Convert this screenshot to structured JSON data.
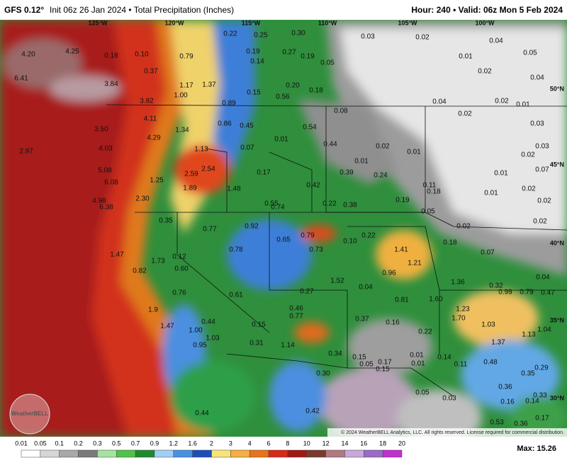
{
  "header": {
    "model": "GFS 0.12°",
    "description": "Init 06z 26 Jan 2024 • Total Precipitation (Inches)",
    "valid": "Hour: 240 • Valid: 06z Mon 5 Feb 2024"
  },
  "map": {
    "longitude_labels": [
      "125°W",
      "120°W",
      "115°W",
      "110°W",
      "105°W",
      "100°W"
    ],
    "latitude_labels": [
      "50°N",
      "45°N",
      "40°N",
      "35°N",
      "30°N"
    ],
    "logo": "WeatherBELL",
    "copyright": "© 2024 WeatherBELL Analytics, LLC. All rights reserved. License required for commercial distribution.",
    "point_values": [
      "4.20",
      "4.25",
      "0.18",
      "0.10",
      "0.79",
      "0.22",
      "0.25",
      "0.30",
      "0.03",
      "0.02",
      "0.04",
      "0.05",
      "6.41",
      "3.84",
      "0.37",
      "1.17",
      "1.37",
      "0.19",
      "0.27",
      "0.19",
      "0.14",
      "0.05",
      "0.01",
      "0.02",
      "0.04",
      "0.20",
      "0.18",
      "0.56",
      "0.15",
      "1.00",
      "3.82",
      "0.89",
      "0.04",
      "0.02",
      "0.01",
      "4.11",
      "3.50",
      "1.34",
      "0.86",
      "0.45",
      "0.54",
      "0.08",
      "0.02",
      "0.03",
      "2.97",
      "4.03",
      "4.29",
      "0.01",
      "0.07",
      "1.13",
      "0.44",
      "0.02",
      "0.01",
      "0.02",
      "0.03",
      "5.08",
      "2.59",
      "2.54",
      "0.17",
      "0.01",
      "0.39",
      "0.24",
      "0.01",
      "0.07",
      "6.08",
      "1.25",
      "1.89",
      "1.48",
      "0.42",
      "0.11",
      "0.18",
      "0.01",
      "0.02",
      "4.98",
      "6.38",
      "2.30",
      "0.55",
      "0.74",
      "0.22",
      "0.38",
      "0.19",
      "0.05",
      "0.02",
      "0.35",
      "0.77",
      "0.92",
      "0.02",
      "0.02",
      "0.65",
      "0.79",
      "0.10",
      "0.22",
      "0.18",
      "1.47",
      "1.73",
      "0.12",
      "0.78",
      "0.73",
      "1.41",
      "0.07",
      "0.82",
      "0.60",
      "1.21",
      "0.96",
      "1.52",
      "1.36",
      "0.04",
      "0.32",
      "0.76",
      "0.61",
      "0.27",
      "0.04",
      "0.81",
      "1.60",
      "0.99",
      "0.79",
      "0.47",
      "1.9",
      "0.46",
      "0.77",
      "0.37",
      "0.16",
      "1.23",
      "1.70",
      "1.47",
      "1.00",
      "0.44",
      "0.15",
      "0.22",
      "1.03",
      "1.13",
      "1.04",
      "0.95",
      "1.03",
      "0.31",
      "1.14",
      "0.34",
      "0.15",
      "0.01",
      "0.14",
      "1.37",
      "0.05",
      "0.17",
      "0.15",
      "0.01",
      "0.11",
      "0.48",
      "0.29",
      "0.35",
      "0.30",
      "0.36",
      "0.05",
      "0.03",
      "0.16",
      "0.14",
      "0.33",
      "0.44",
      "0.42",
      "0.17",
      "0.53",
      "0.36"
    ]
  },
  "colorbar": {
    "labels": [
      "0.01",
      "0.05",
      "0.1",
      "0.2",
      "0.3",
      "0.5",
      "0.7",
      "0.9",
      "1.2",
      "1.6",
      "2",
      "3",
      "4",
      "6",
      "8",
      "10",
      "12",
      "14",
      "16",
      "18",
      "20"
    ],
    "max": "Max: 15.26"
  }
}
